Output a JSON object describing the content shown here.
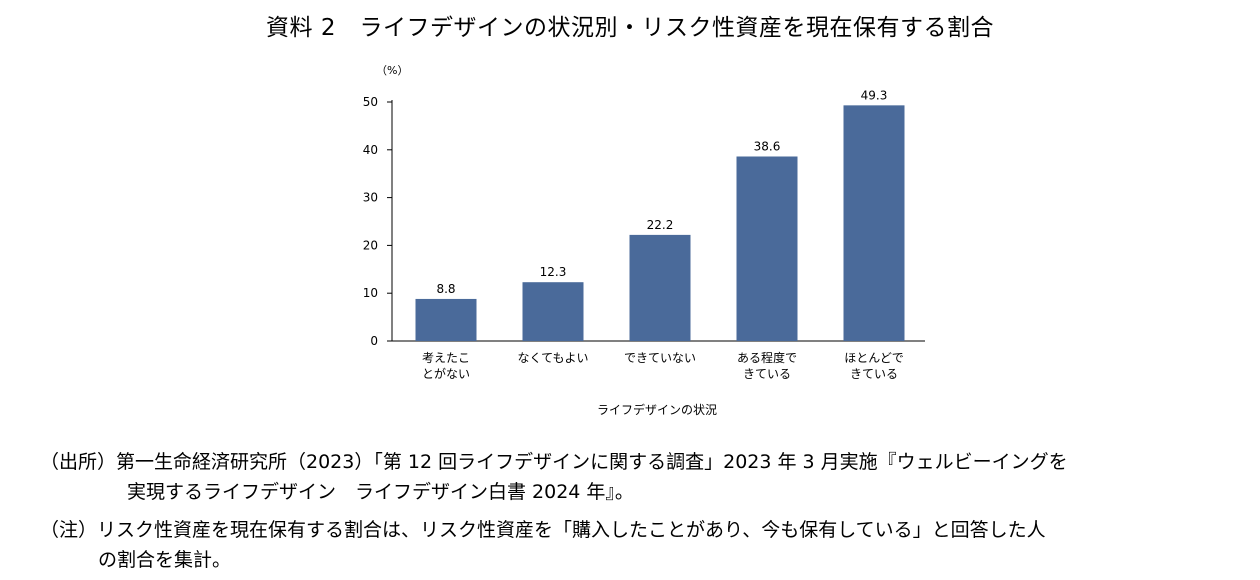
{
  "title": "資料 2　ライフデザインの状況別・リスク性資産を現在保有する割合",
  "chart_data": {
    "type": "bar",
    "categories": [
      [
        "考えたこ",
        "とがない"
      ],
      [
        "なくてもよい"
      ],
      [
        "できていない"
      ],
      [
        "ある程度で",
        "きている"
      ],
      [
        "ほとんどで",
        "きている"
      ]
    ],
    "values": [
      8.8,
      12.3,
      22.2,
      38.6,
      49.3
    ],
    "value_labels": [
      "8.8",
      "12.3",
      "22.2",
      "38.6",
      "49.3"
    ],
    "y_unit": "（%）",
    "xlabel": "ライフデザインの状況",
    "ylim": [
      0,
      50
    ],
    "yticks": [
      0,
      10,
      20,
      30,
      40,
      50
    ],
    "bar_color": "#4a6a9a",
    "grid": false,
    "legend": "none"
  },
  "notes": {
    "source_line1": "（出所）第一生命経済研究所（2023）「第 12 回ライフデザインに関する調査」2023 年 3 月実施『ウェルビーイングを",
    "source_line2": "実現するライフデザイン　ライフデザイン白書 2024 年』。",
    "note_line1": "（注）リスク性資産を現在保有する割合は、リスク性資産を「購入したことがあり、今も保有している」と回答した人",
    "note_line2": "の割合を集計。"
  }
}
